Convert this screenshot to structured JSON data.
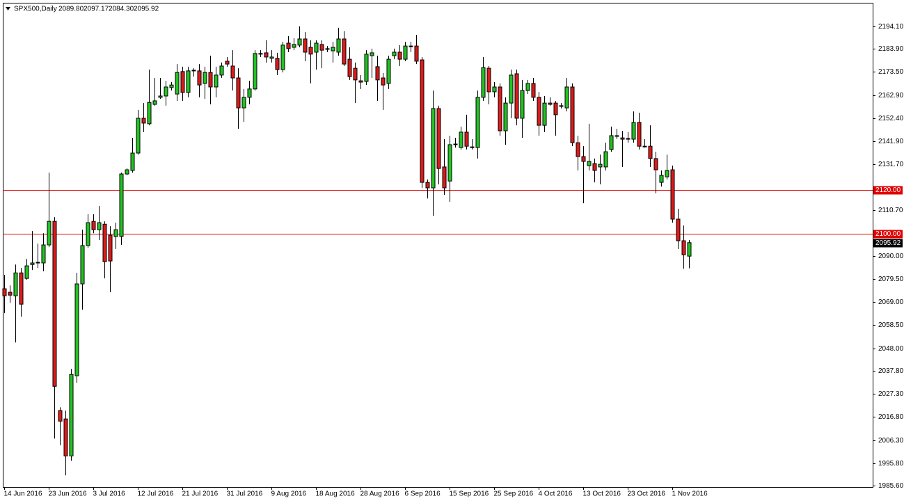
{
  "chart_data": {
    "type": "candlestick",
    "title": "SPX500,Daily",
    "ohlc_labels": [
      "2089.80",
      "2097.17",
      "2084.30",
      "2095.92"
    ],
    "categories": [
      "14 Jun 2016",
      null,
      null,
      null,
      null,
      null,
      null,
      null,
      "23 Jun 2016",
      null,
      null,
      null,
      null,
      null,
      null,
      null,
      "3 Jul 2016",
      null,
      null,
      null,
      null,
      null,
      null,
      null,
      "12 Jul 2016",
      null,
      null,
      null,
      null,
      null,
      null,
      null,
      "21 Jul 2016",
      null,
      null,
      null,
      null,
      null,
      null,
      null,
      "31 Jul 2016",
      null,
      null,
      null,
      null,
      null,
      null,
      null,
      "9 Aug 2016",
      null,
      null,
      null,
      null,
      null,
      null,
      null,
      "18 Aug 2016",
      null,
      null,
      null,
      null,
      null,
      null,
      null,
      "28 Aug 2016",
      null,
      null,
      null,
      null,
      null,
      null,
      null,
      "6 Sep 2016",
      null,
      null,
      null,
      null,
      null,
      null,
      null,
      "15 Sep 2016",
      null,
      null,
      null,
      null,
      null,
      null,
      null,
      "25 Sep 2016",
      null,
      null,
      null,
      null,
      null,
      null,
      null,
      "4 Oct 2016",
      null,
      null,
      null,
      null,
      null,
      null,
      null,
      "13 Oct 2016",
      null,
      null,
      null,
      null,
      null,
      null,
      null,
      "23 Oct 2016",
      null,
      null,
      null,
      null,
      null,
      null,
      null,
      "1 Nov 2016",
      null,
      null,
      null
    ],
    "open": [
      2075.0,
      2073.4,
      2071.8,
      2082.2,
      2079.7,
      2086.0,
      2086.7,
      2086.7,
      2094.9,
      2105.6,
      2019.7,
      2015.9,
      1999.1,
      2035.5,
      2077.2,
      2094.6,
      2105.6,
      2101.8,
      2104.3,
      2099.3,
      2098.7,
      2098.7,
      2127.1,
      2128.7,
      2136.6,
      2152.4,
      2149.9,
      2158.7,
      2161.9,
      2162.5,
      2166.3,
      2163.4,
      2173.6,
      2164.1,
      2173.9,
      2173.9,
      2168.2,
      2173.2,
      2166.6,
      2172.0,
      2178.3,
      2176.1,
      2170.7,
      2157.1,
      2161.9,
      2165.7,
      2181.5,
      2182.1,
      2179.6,
      2179.6,
      2174.5,
      2186.5,
      2184.6,
      2185.6,
      2188.4,
      2184.6,
      2182.4,
      2185.9,
      2184.0,
      2183.0,
      2182.4,
      2188.4,
      2179.2,
      2175.1,
      2169.4,
      2169.1,
      2180.8,
      2175.8,
      2170.7,
      2168.2,
      2180.8,
      2182.4,
      2179.2,
      2185.2,
      2185.2,
      2178.9,
      2123.3,
      2120.8,
      2156.8,
      2130.3,
      2123.9,
      2140.4,
      2139.1,
      2146.1,
      2139.1,
      2139.1,
      2161.9,
      2175.1,
      2164.4,
      2166.6,
      2146.7,
      2159.3,
      2172.6,
      2152.4,
      2165.0,
      2168.2,
      2161.9,
      2149.2,
      2159.3,
      2159.3,
      2158.1,
      2157.1,
      2166.6,
      2141.3,
      2135.0,
      2130.9,
      2131.8,
      2130.3,
      2130.3,
      2138.2,
      2144.2,
      2143.5,
      2142.9,
      2142.9,
      2150.5,
      2139.7,
      2139.7,
      2134.1,
      2123.3,
      2125.8,
      2129.0,
      2106.6,
      2096.8,
      2089.8
    ],
    "high": [
      2081.3,
      2076.5,
      2086.0,
      2084.4,
      2088.5,
      2101.2,
      2095.5,
      2100.2,
      2127.7,
      2107.5,
      2021.2,
      2019.7,
      2038.6,
      2082.2,
      2101.8,
      2108.8,
      2108.8,
      2112.6,
      2105.6,
      2103.4,
      2105.0,
      2127.7,
      2129.6,
      2143.5,
      2156.2,
      2159.3,
      2174.5,
      2170.7,
      2170.7,
      2169.4,
      2168.8,
      2177.0,
      2175.8,
      2175.8,
      2175.1,
      2177.0,
      2175.8,
      2180.8,
      2175.8,
      2177.7,
      2180.2,
      2183.3,
      2175.1,
      2165.7,
      2169.4,
      2183.3,
      2183.3,
      2187.8,
      2183.3,
      2182.1,
      2187.1,
      2189.7,
      2188.7,
      2194.1,
      2191.6,
      2187.8,
      2187.8,
      2187.8,
      2185.2,
      2187.1,
      2193.5,
      2191.9,
      2184.6,
      2177.7,
      2172.0,
      2183.3,
      2184.0,
      2180.8,
      2172.9,
      2180.8,
      2184.0,
      2185.6,
      2187.1,
      2187.1,
      2190.3,
      2180.2,
      2124.6,
      2165.0,
      2158.1,
      2142.9,
      2144.5,
      2143.5,
      2148.6,
      2154.0,
      2142.9,
      2165.0,
      2180.2,
      2176.1,
      2168.8,
      2168.2,
      2161.9,
      2174.5,
      2174.5,
      2169.8,
      2169.8,
      2170.7,
      2164.4,
      2162.5,
      2161.9,
      2160.3,
      2159.3,
      2170.7,
      2168.2,
      2144.5,
      2139.7,
      2149.9,
      2134.1,
      2135.9,
      2141.3,
      2148.6,
      2147.6,
      2146.7,
      2146.1,
      2155.5,
      2154.9,
      2142.9,
      2149.2,
      2137.2,
      2128.7,
      2135.9,
      2130.9,
      2111.3,
      2103.7,
      2097.17
    ],
    "low": [
      2063.9,
      2068.6,
      2050.6,
      2062.3,
      2079.1,
      2083.5,
      2084.4,
      2082.9,
      2093.9,
      2007.0,
      2003.9,
      1990.3,
      1996.9,
      2032.3,
      2065.5,
      2093.6,
      2100.2,
      2097.1,
      2079.7,
      2073.4,
      2093.0,
      2094.9,
      2126.5,
      2127.7,
      2135.9,
      2146.1,
      2149.2,
      2158.1,
      2161.2,
      2158.1,
      2165.0,
      2160.3,
      2160.3,
      2161.9,
      2171.3,
      2161.9,
      2161.2,
      2158.7,
      2161.9,
      2170.7,
      2175.8,
      2165.0,
      2147.6,
      2150.8,
      2158.7,
      2165.0,
      2180.2,
      2177.7,
      2177.7,
      2172.0,
      2173.2,
      2182.4,
      2183.3,
      2184.6,
      2178.3,
      2168.2,
      2174.5,
      2175.1,
      2182.4,
      2177.7,
      2180.8,
      2176.1,
      2169.8,
      2159.3,
      2165.7,
      2167.5,
      2170.7,
      2160.3,
      2156.2,
      2165.7,
      2179.2,
      2176.1,
      2178.3,
      2182.4,
      2177.0,
      2120.8,
      2116.0,
      2108.1,
      2122.4,
      2117.6,
      2114.5,
      2139.1,
      2138.2,
      2138.2,
      2138.2,
      2134.1,
      2160.3,
      2158.7,
      2161.9,
      2144.5,
      2140.4,
      2152.4,
      2149.2,
      2143.5,
      2163.4,
      2160.3,
      2144.5,
      2146.1,
      2158.1,
      2144.5,
      2156.8,
      2155.5,
      2139.7,
      2128.7,
      2113.8,
      2128.7,
      2123.3,
      2122.4,
      2128.7,
      2137.2,
      2142.9,
      2130.3,
      2141.3,
      2141.3,
      2138.2,
      2139.1,
      2130.3,
      2118.3,
      2121.4,
      2124.6,
      2105.0,
      2093.0,
      2084.1,
      2084.3
    ],
    "close": [
      2071.8,
      2072.1,
      2082.2,
      2068.0,
      2085.4,
      2086.7,
      2087.0,
      2094.9,
      2105.6,
      2030.7,
      2014.9,
      1999.1,
      2036.1,
      2077.2,
      2094.6,
      2105.0,
      2101.8,
      2105.0,
      2087.3,
      2087.6,
      2101.8,
      2127.1,
      2129.0,
      2136.6,
      2152.4,
      2150.2,
      2159.6,
      2160.3,
      2162.5,
      2166.6,
      2167.5,
      2173.2,
      2164.1,
      2173.9,
      2174.2,
      2167.5,
      2173.2,
      2166.6,
      2172.0,
      2176.1,
      2177.0,
      2170.7,
      2157.1,
      2161.9,
      2165.7,
      2181.8,
      2181.8,
      2180.2,
      2180.2,
      2174.5,
      2185.6,
      2184.0,
      2185.9,
      2188.4,
      2182.4,
      2181.5,
      2186.5,
      2183.3,
      2183.7,
      2184.6,
      2188.4,
      2177.0,
      2171.3,
      2169.8,
      2168.8,
      2181.5,
      2182.1,
      2169.8,
      2167.5,
      2179.2,
      2182.4,
      2179.2,
      2185.2,
      2184.9,
      2178.3,
      2123.3,
      2120.8,
      2156.8,
      2129.6,
      2120.8,
      2140.4,
      2140.7,
      2146.1,
      2139.7,
      2139.4,
      2161.9,
      2175.4,
      2164.4,
      2166.6,
      2146.7,
      2159.3,
      2172.0,
      2152.4,
      2165.0,
      2168.2,
      2161.9,
      2149.2,
      2159.3,
      2158.7,
      2154.0,
      2157.8,
      2166.6,
      2141.3,
      2135.0,
      2132.8,
      2132.8,
      2128.7,
      2131.5,
      2137.2,
      2144.5,
      2144.5,
      2142.9,
      2143.2,
      2150.5,
      2139.7,
      2139.4,
      2134.1,
      2129.0,
      2126.5,
      2128.7,
      2106.6,
      2096.8,
      2090.4,
      2095.92
    ],
    "up_color": "#22c322",
    "down_color": "#dd1a1a",
    "ylim": [
      1985.0,
      2204.5
    ],
    "yticks": [
      {
        "value": 2194.1,
        "label": "2194.10"
      },
      {
        "value": 2183.9,
        "label": "2183.90"
      },
      {
        "value": 2173.5,
        "label": "2173.50"
      },
      {
        "value": 2162.9,
        "label": "2162.90"
      },
      {
        "value": 2152.4,
        "label": "2152.40"
      },
      {
        "value": 2141.9,
        "label": "2141.90"
      },
      {
        "value": 2131.7,
        "label": "2131.70"
      },
      {
        "value": 2110.7,
        "label": "2110.70"
      },
      {
        "value": 2090.0,
        "label": "2090.00"
      },
      {
        "value": 2079.5,
        "label": "2079.50"
      },
      {
        "value": 2069.0,
        "label": "2069.00"
      },
      {
        "value": 2058.5,
        "label": "2058.50"
      },
      {
        "value": 2048.0,
        "label": "2048.00"
      },
      {
        "value": 2037.8,
        "label": "2037.80"
      },
      {
        "value": 2027.3,
        "label": "2027.30"
      },
      {
        "value": 2016.8,
        "label": "2016.80"
      },
      {
        "value": 2006.3,
        "label": "2006.30"
      },
      {
        "value": 1995.8,
        "label": "1995.80"
      },
      {
        "value": 1985.6,
        "label": "1985.60"
      }
    ],
    "hlines": [
      {
        "value": 2120.0,
        "label": "2120.00",
        "color": "#e00000"
      },
      {
        "value": 2100.0,
        "label": "2100.00",
        "color": "#e00000"
      }
    ],
    "price_marker": {
      "value": 2095.92,
      "label": "2095.92",
      "color": "#000000"
    },
    "grid": false
  }
}
